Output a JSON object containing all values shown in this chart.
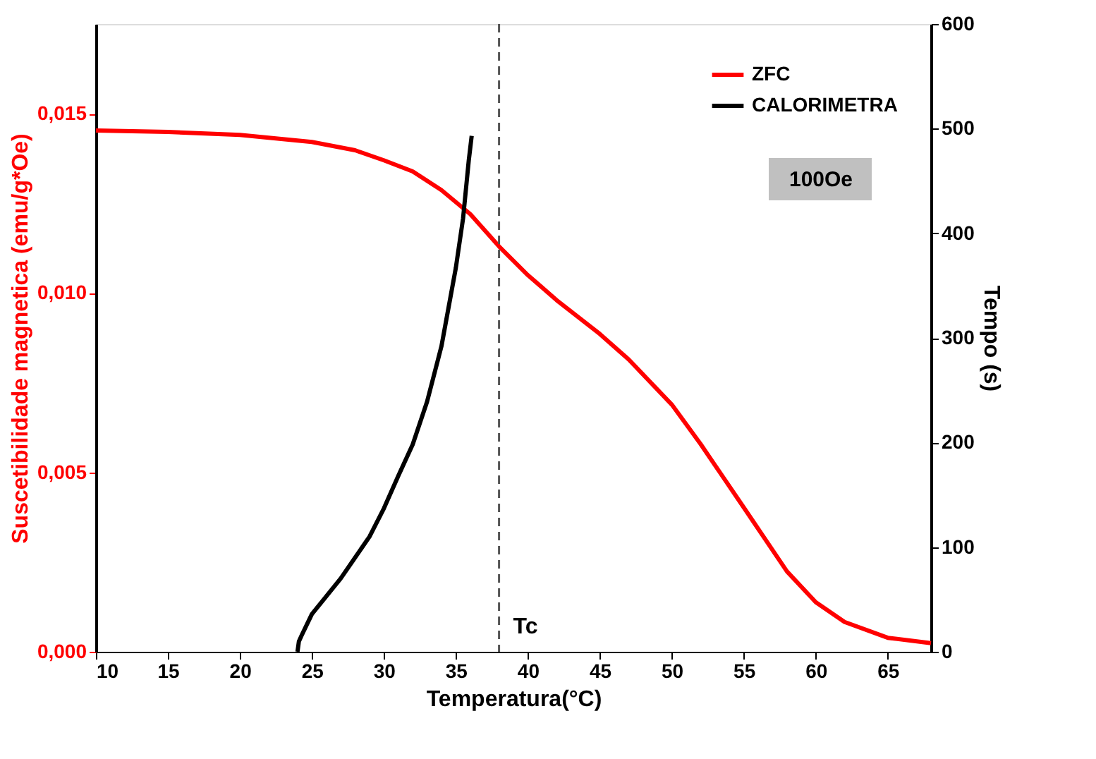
{
  "chart_data": {
    "type": "line",
    "xlabel": "Temperatura(°C)",
    "ylabel": "Suscetibilidade magnetica (emu/g*Oe)",
    "y2label": "Tempo (s)",
    "xlim": [
      10,
      68
    ],
    "xticks": [
      10,
      15,
      20,
      25,
      30,
      35,
      40,
      45,
      50,
      55,
      60,
      65
    ],
    "ylim": [
      0,
      0.0175
    ],
    "yticks": [
      {
        "value": 0,
        "label": "0,000"
      },
      {
        "value": 0.005,
        "label": "0,005"
      },
      {
        "value": 0.01,
        "label": "0,010"
      },
      {
        "value": 0.015,
        "label": "0,015"
      }
    ],
    "y2lim": [
      0,
      600
    ],
    "y2ticks": [
      0,
      100,
      200,
      300,
      400,
      500,
      600
    ],
    "series": [
      {
        "name": "ZFC",
        "color": "#ff0000",
        "axis": "y",
        "x": [
          10,
          15,
          20,
          25,
          28,
          30,
          32,
          34,
          36,
          38,
          40,
          42,
          45,
          47,
          50,
          52,
          55,
          58,
          60,
          62,
          65,
          68
        ],
        "values": [
          0.01453,
          0.01449,
          0.01441,
          0.01421,
          0.01398,
          0.0137,
          0.01339,
          0.01287,
          0.0122,
          0.0113,
          0.0105,
          0.0098,
          0.00886,
          0.00815,
          0.00689,
          0.00579,
          0.00402,
          0.00224,
          0.00138,
          0.00083,
          0.00039,
          0.00024
        ]
      },
      {
        "name": "CALORIMETRA",
        "color": "#000000",
        "axis": "y2",
        "x": [
          24,
          24.1,
          24.3,
          25,
          26,
          27,
          28,
          29,
          30,
          31,
          32,
          33,
          34,
          35,
          35.5,
          35.9,
          36.1
        ],
        "values": [
          0,
          10,
          16,
          36,
          53,
          70,
          90,
          110,
          137,
          168,
          198,
          239,
          292,
          367,
          414,
          470,
          493
        ]
      }
    ],
    "ref_lines": [
      {
        "axis": "x",
        "value": 38,
        "label": "Tc",
        "line_style": "dashed",
        "color": "#555555"
      }
    ],
    "annotations": [
      "100Oe"
    ],
    "legend": "top right",
    "grid": false,
    "marker": "none",
    "line_style": "solid"
  }
}
